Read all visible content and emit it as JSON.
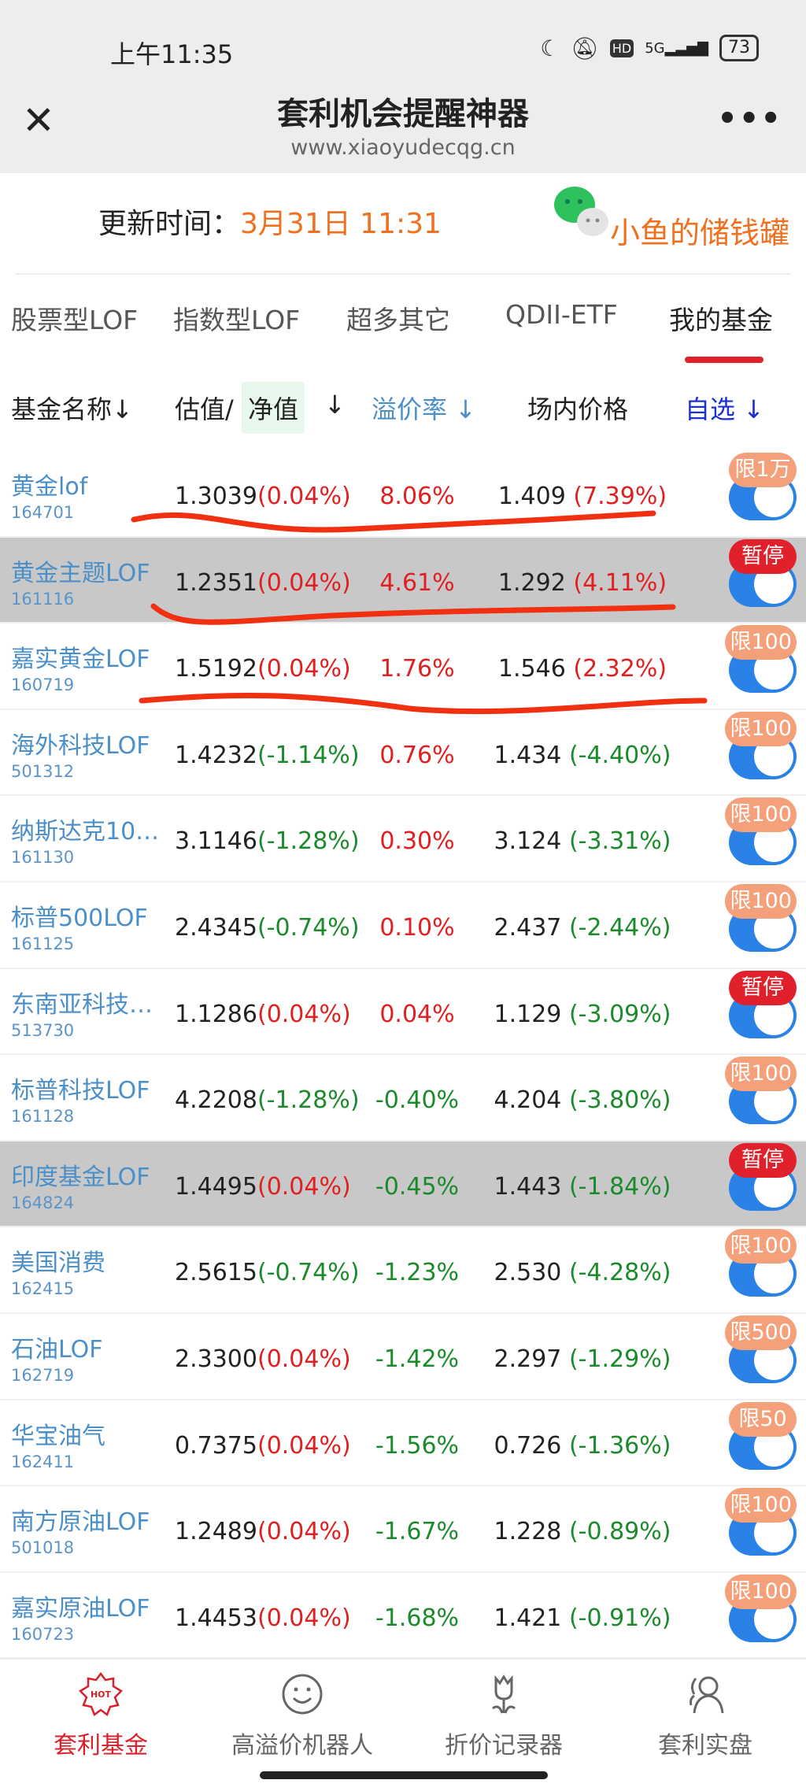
{
  "status_bar": {
    "time": "上午11:35",
    "network": "5G",
    "battery": "73",
    "hd": "HD"
  },
  "header": {
    "title": "套利机会提醒神器",
    "url": "www.xiaoyudecqg.cn"
  },
  "update": {
    "label": "更新时间：",
    "time": "3月31日 11:31"
  },
  "brand": "小鱼的储钱罐",
  "tabs": [
    "股票型LOF",
    "指数型LOF",
    "超多其它",
    "QDII-ETF",
    "我的基金"
  ],
  "active_tab": "我的基金",
  "columns": {
    "name": "基金名称↓",
    "estimate": "估值/",
    "nav": "净值",
    "nav_arrow": "↓",
    "premium": "溢价率 ↓",
    "price": "场内价格",
    "fav": "自选 ↓"
  },
  "colors": {
    "accent_red": "#e2202a",
    "blue_link": "#4b8fc9",
    "up": "#e02020",
    "down": "#1a8a2a",
    "badge_orange": "#f4a07a",
    "badge_red": "#e0202a"
  },
  "funds": [
    {
      "name": "黄金lof",
      "code": "164701",
      "est": "1.3039",
      "est_chg": "(0.04%)",
      "premium": "8.06%",
      "price": "1.409",
      "price_chg": "(7.39%)",
      "badge": "限1万",
      "badge_type": "limit",
      "highlight": false,
      "fav": true
    },
    {
      "name": "黄金主题LOF",
      "code": "161116",
      "est": "1.2351",
      "est_chg": "(0.04%)",
      "premium": "4.61%",
      "price": "1.292",
      "price_chg": "(4.11%)",
      "badge": "暂停",
      "badge_type": "pause",
      "highlight": true,
      "fav": true
    },
    {
      "name": "嘉实黄金LOF",
      "code": "160719",
      "est": "1.5192",
      "est_chg": "(0.04%)",
      "premium": "1.76%",
      "price": "1.546",
      "price_chg": "(2.32%)",
      "badge": "限100",
      "badge_type": "limit",
      "highlight": false,
      "fav": true
    },
    {
      "name": "海外科技LOF",
      "code": "501312",
      "est": "1.4232",
      "est_chg": "(-1.14%)",
      "premium": "0.76%",
      "price": "1.434",
      "price_chg": "(-4.40%)",
      "badge": "限100",
      "badge_type": "limit",
      "highlight": false,
      "fav": true
    },
    {
      "name": "纳斯达克10…",
      "code": "161130",
      "est": "3.1146",
      "est_chg": "(-1.28%)",
      "premium": "0.30%",
      "price": "3.124",
      "price_chg": "(-3.31%)",
      "badge": "限100",
      "badge_type": "limit",
      "highlight": false,
      "fav": true
    },
    {
      "name": "标普500LOF",
      "code": "161125",
      "est": "2.4345",
      "est_chg": "(-0.74%)",
      "premium": "0.10%",
      "price": "2.437",
      "price_chg": "(-2.44%)",
      "badge": "限100",
      "badge_type": "limit",
      "highlight": false,
      "fav": true
    },
    {
      "name": "东南亚科技…",
      "code": "513730",
      "est": "1.1286",
      "est_chg": "(0.04%)",
      "premium": "0.04%",
      "price": "1.129",
      "price_chg": "(-3.09%)",
      "badge": "暂停",
      "badge_type": "pause",
      "highlight": false,
      "fav": true
    },
    {
      "name": "标普科技LOF",
      "code": "161128",
      "est": "4.2208",
      "est_chg": "(-1.28%)",
      "premium": "-0.40%",
      "price": "4.204",
      "price_chg": "(-3.80%)",
      "badge": "限100",
      "badge_type": "limit",
      "highlight": false,
      "fav": true
    },
    {
      "name": "印度基金LOF",
      "code": "164824",
      "est": "1.4495",
      "est_chg": "(0.04%)",
      "premium": "-0.45%",
      "price": "1.443",
      "price_chg": "(-1.84%)",
      "badge": "暂停",
      "badge_type": "pause",
      "highlight": true,
      "fav": true
    },
    {
      "name": "美国消费",
      "code": "162415",
      "est": "2.5615",
      "est_chg": "(-0.74%)",
      "premium": "-1.23%",
      "price": "2.530",
      "price_chg": "(-4.28%)",
      "badge": "限100",
      "badge_type": "limit",
      "highlight": false,
      "fav": true
    },
    {
      "name": "石油LOF",
      "code": "162719",
      "est": "2.3300",
      "est_chg": "(0.04%)",
      "premium": "-1.42%",
      "price": "2.297",
      "price_chg": "(-1.29%)",
      "badge": "限500",
      "badge_type": "limit",
      "highlight": false,
      "fav": true
    },
    {
      "name": "华宝油气",
      "code": "162411",
      "est": "0.7375",
      "est_chg": "(0.04%)",
      "premium": "-1.56%",
      "price": "0.726",
      "price_chg": "(-1.36%)",
      "badge": "限50",
      "badge_type": "limit",
      "highlight": false,
      "fav": true
    },
    {
      "name": "南方原油LOF",
      "code": "501018",
      "est": "1.2489",
      "est_chg": "(0.04%)",
      "premium": "-1.67%",
      "price": "1.228",
      "price_chg": "(-0.89%)",
      "badge": "限100",
      "badge_type": "limit",
      "highlight": false,
      "fav": true
    },
    {
      "name": "嘉实原油LOF",
      "code": "160723",
      "est": "1.4453",
      "est_chg": "(0.04%)",
      "premium": "-1.68%",
      "price": "1.421",
      "price_chg": "(-0.91%)",
      "badge": "限100",
      "badge_type": "limit",
      "highlight": false,
      "fav": true
    }
  ],
  "bottom_nav": [
    {
      "label": "套利基金",
      "icon": "hot-badge-icon",
      "hot": "HOT",
      "active": true
    },
    {
      "label": "高溢价机器人",
      "icon": "smiley-icon",
      "active": false
    },
    {
      "label": "折价记录器",
      "icon": "tulip-icon",
      "active": false
    },
    {
      "label": "套利实盘",
      "icon": "users-icon",
      "active": false
    }
  ]
}
